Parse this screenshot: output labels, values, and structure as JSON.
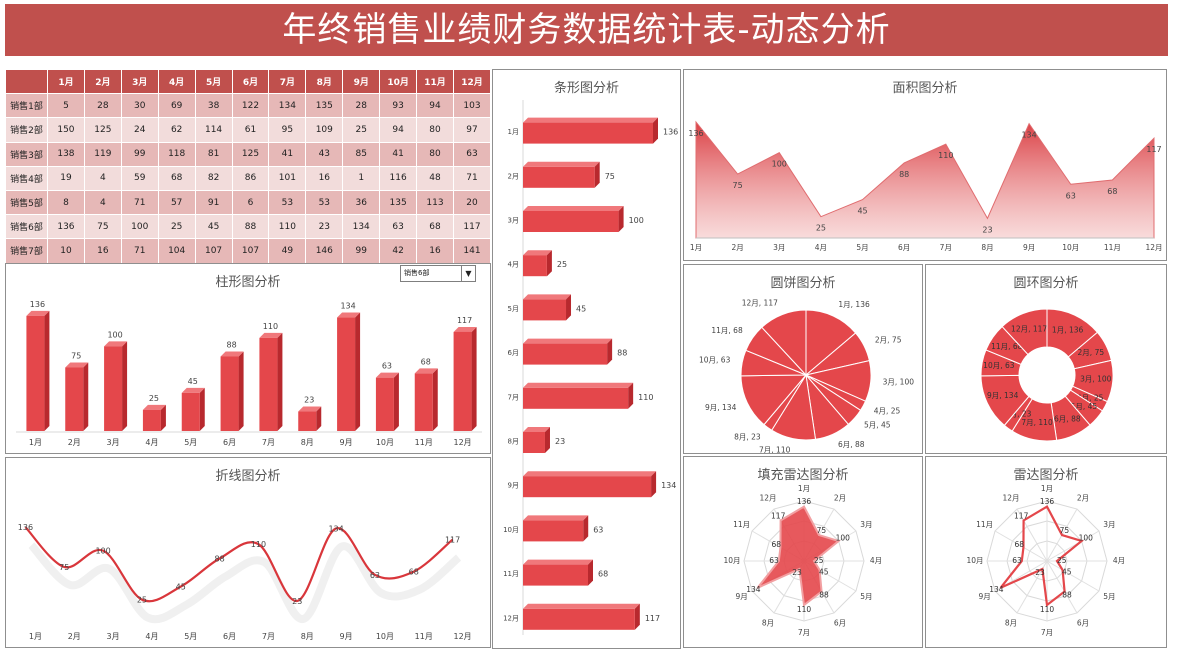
{
  "title": "年终销售业绩财务数据统计表-动态分析",
  "months": [
    "1月",
    "2月",
    "3月",
    "4月",
    "5月",
    "6月",
    "7月",
    "8月",
    "9月",
    "10月",
    "11月",
    "12月"
  ],
  "rows": [
    {
      "name": "销售1部",
      "values": [
        5,
        28,
        30,
        69,
        38,
        122,
        134,
        135,
        28,
        93,
        94,
        103
      ]
    },
    {
      "name": "销售2部",
      "values": [
        150,
        125,
        24,
        62,
        114,
        61,
        95,
        109,
        25,
        94,
        80,
        97
      ]
    },
    {
      "name": "销售3部",
      "values": [
        138,
        119,
        99,
        118,
        81,
        125,
        41,
        43,
        85,
        41,
        80,
        63
      ]
    },
    {
      "name": "销售4部",
      "values": [
        19,
        4,
        59,
        68,
        82,
        86,
        101,
        16,
        1,
        116,
        48,
        71
      ]
    },
    {
      "name": "销售5部",
      "values": [
        8,
        4,
        71,
        57,
        91,
        6,
        53,
        53,
        36,
        135,
        113,
        20
      ]
    },
    {
      "name": "销售6部",
      "values": [
        136,
        75,
        100,
        25,
        45,
        88,
        110,
        23,
        134,
        63,
        68,
        117
      ]
    },
    {
      "name": "销售7部",
      "values": [
        10,
        16,
        71,
        104,
        107,
        107,
        49,
        146,
        99,
        42,
        16,
        141
      ]
    }
  ],
  "selector": {
    "value": "销售6部",
    "arrow": "▼",
    "icon": "dropdown-arrow-icon"
  },
  "panels": {
    "column": "柱形图分析",
    "line": "折线图分析",
    "bar": "条形图分析",
    "area": "面积图分析",
    "pie": "圆饼图分析",
    "donut": "圆环图分析",
    "filled_radar": "填充雷达图分析",
    "radar": "雷达图分析"
  },
  "colors": {
    "accent": "#c0504d",
    "bar": "#e4474b",
    "bar_dark": "#b8292e",
    "bar_light": "#f0787b",
    "header_row": "#e6b8b7",
    "header_row_alt": "#f2dcdb"
  },
  "chart_data": [
    {
      "chart": "column",
      "type": "bar",
      "title": "柱形图分析",
      "categories": [
        "1月",
        "2月",
        "3月",
        "4月",
        "5月",
        "6月",
        "7月",
        "8月",
        "9月",
        "10月",
        "11月",
        "12月"
      ],
      "values": [
        136,
        75,
        100,
        25,
        45,
        88,
        110,
        23,
        134,
        63,
        68,
        117
      ]
    },
    {
      "chart": "line",
      "type": "line",
      "title": "折线图分析",
      "categories": [
        "1月",
        "2月",
        "3月",
        "4月",
        "5月",
        "6月",
        "7月",
        "8月",
        "9月",
        "10月",
        "11月",
        "12月"
      ],
      "values": [
        136,
        75,
        100,
        25,
        45,
        88,
        110,
        23,
        134,
        63,
        68,
        117
      ]
    },
    {
      "chart": "bar",
      "type": "bar",
      "orientation": "horizontal",
      "title": "条形图分析",
      "categories": [
        "1月",
        "2月",
        "3月",
        "4月",
        "5月",
        "6月",
        "7月",
        "8月",
        "9月",
        "10月",
        "11月",
        "12月"
      ],
      "values": [
        136,
        75,
        100,
        25,
        45,
        88,
        110,
        23,
        134,
        63,
        68,
        117
      ]
    },
    {
      "chart": "area",
      "type": "area",
      "title": "面积图分析",
      "categories": [
        "1月",
        "2月",
        "3月",
        "4月",
        "5月",
        "6月",
        "7月",
        "8月",
        "9月",
        "10月",
        "11月",
        "12月"
      ],
      "values": [
        136,
        75,
        100,
        25,
        45,
        88,
        110,
        23,
        134,
        63,
        68,
        117
      ]
    },
    {
      "chart": "pie",
      "type": "pie",
      "title": "圆饼图分析",
      "categories": [
        "1月",
        "2月",
        "3月",
        "4月",
        "5月",
        "6月",
        "7月",
        "8月",
        "9月",
        "10月",
        "11月",
        "12月"
      ],
      "values": [
        136,
        75,
        100,
        25,
        45,
        88,
        110,
        23,
        134,
        63,
        68,
        117
      ]
    },
    {
      "chart": "donut",
      "type": "pie",
      "variant": "donut",
      "title": "圆环图分析",
      "categories": [
        "1月",
        "2月",
        "3月",
        "4月",
        "5月",
        "6月",
        "7月",
        "8月",
        "9月",
        "10月",
        "11月",
        "12月"
      ],
      "values": [
        136,
        75,
        100,
        25,
        45,
        88,
        110,
        23,
        134,
        63,
        68,
        117
      ]
    },
    {
      "chart": "filled_radar",
      "type": "radar",
      "fill": true,
      "title": "填充雷达图分析",
      "categories": [
        "1月",
        "2月",
        "3月",
        "4月",
        "5月",
        "6月",
        "7月",
        "8月",
        "9月",
        "10月",
        "11月",
        "12月"
      ],
      "values": [
        136,
        75,
        100,
        25,
        45,
        88,
        110,
        23,
        134,
        63,
        68,
        117
      ]
    },
    {
      "chart": "radar",
      "type": "radar",
      "fill": false,
      "title": "雷达图分析",
      "categories": [
        "1月",
        "2月",
        "3月",
        "4月",
        "5月",
        "6月",
        "7月",
        "8月",
        "9月",
        "10月",
        "11月",
        "12月"
      ],
      "values": [
        136,
        75,
        100,
        25,
        45,
        88,
        110,
        23,
        134,
        63,
        68,
        117
      ]
    }
  ]
}
